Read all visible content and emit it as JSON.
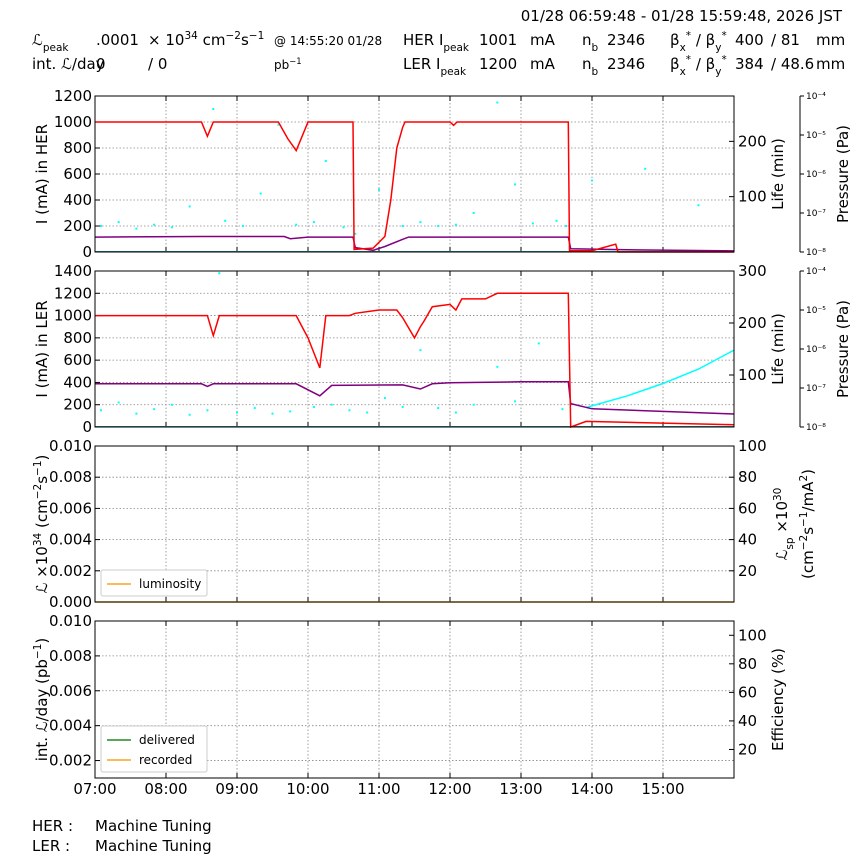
{
  "header": {
    "time_range": "01/28 06:59:48 - 01/28 15:59:48, 2026 JST",
    "rows": [
      [
        [
          "ℒ",
          {
            "text": "peak",
            "shift": "sub"
          }
        ],
        [
          ".0001"
        ],
        [
          "× 10",
          {
            "text": "34",
            "shift": "sup"
          },
          " cm",
          {
            "text": "−2",
            "shift": "sup"
          },
          "s",
          {
            "text": "−1",
            "shift": "sup"
          }
        ],
        [
          "@ 14:55:20 01/28"
        ],
        [
          "HER I",
          {
            "text": "peak",
            "shift": "sub"
          }
        ],
        [
          "1001"
        ],
        [
          "mA"
        ],
        [
          "n",
          {
            "text": "b",
            "shift": "sub"
          }
        ],
        [
          "2346"
        ],
        [
          "β",
          {
            "text": "x",
            "shift": "sub"
          },
          {
            "text": "*",
            "shift": "sup"
          },
          " / β",
          {
            "text": "y",
            "shift": "sub"
          },
          {
            "text": "*",
            "shift": "sup"
          }
        ],
        [
          "400"
        ],
        [
          "/ 81"
        ],
        [
          "mm"
        ]
      ],
      [
        [
          "int. ℒ/day"
        ],
        [
          "0"
        ],
        [
          "/ 0"
        ],
        [
          "pb",
          {
            "text": "−1",
            "shift": "sup"
          }
        ],
        [
          "LER I",
          {
            "text": "peak",
            "shift": "sub"
          }
        ],
        [
          "1200"
        ],
        [
          "mA"
        ],
        [
          "n",
          {
            "text": "b",
            "shift": "sub"
          }
        ],
        [
          "2346"
        ],
        [
          "β",
          {
            "text": "x",
            "shift": "sub"
          },
          {
            "text": "*",
            "shift": "sup"
          },
          " / β",
          {
            "text": "y",
            "shift": "sub"
          },
          {
            "text": "*",
            "shift": "sup"
          }
        ],
        [
          "384"
        ],
        [
          "/ 48.6"
        ],
        [
          "mm"
        ]
      ]
    ]
  },
  "chart_data": {
    "type": "line",
    "xlim": [
      "07:00",
      "16:00"
    ],
    "xticks": [
      "07:00",
      "08:00",
      "09:00",
      "10:00",
      "11:00",
      "12:00",
      "13:00",
      "14:00",
      "15:00"
    ],
    "grid": true,
    "panels": [
      {
        "ylabel": [
          [
            "I (mA) in HER"
          ]
        ],
        "y2label": [
          [
            "Life (min)"
          ]
        ],
        "y3label": [
          [
            "Pressure (Pa)"
          ]
        ],
        "ylim": [
          0,
          1200
        ],
        "yticks": [
          0,
          200,
          400,
          600,
          800,
          1000,
          1200
        ],
        "y2lim": [
          0,
          282
        ],
        "y2ticks": [
          100,
          200
        ],
        "y3lim": [
          1e-08,
          0.0001
        ],
        "y3log": true,
        "y3ticks": [
          {
            "value": 1e-08,
            "label": "10⁻⁸"
          },
          {
            "value": 1e-07,
            "label": "10⁻⁷"
          },
          {
            "value": 1e-06,
            "label": "10⁻⁶"
          },
          {
            "value": 1e-05,
            "label": "10⁻⁵"
          },
          {
            "value": 0.0001,
            "label": "10⁻⁴"
          }
        ],
        "series": [
          {
            "color": "#00ffff",
            "axis": "y",
            "mode": "markers",
            "x": [
              "07:05",
              "07:20",
              "07:35",
              "07:50",
              "08:05",
              "08:20",
              "08:40",
              "08:50",
              "09:05",
              "09:20",
              "09:35",
              "09:50",
              "10:05",
              "10:15",
              "10:30",
              "10:40",
              "11:00",
              "11:20",
              "11:35",
              "11:50",
              "12:05",
              "12:20",
              "12:40",
              "12:55",
              "13:10",
              "13:30",
              "13:38",
              "14:00",
              "14:45",
              "15:30"
            ],
            "values": [
              200,
              230,
              180,
              210,
              190,
              350,
              1100,
              240,
              200,
              450,
              980,
              210,
              230,
              700,
              190,
              140,
              480,
              200,
              230,
              200,
              210,
              300,
              1150,
              520,
              220,
              240,
              200,
              550,
              640,
              360
            ]
          },
          {
            "color": "#2e8b8b",
            "axis": "y",
            "mode": "lines",
            "x": [
              "07:00",
              "16:00"
            ],
            "values": [
              2,
              2
            ]
          },
          {
            "color": "#800080",
            "axis": "y2",
            "mode": "lines",
            "x": [
              "07:00",
              "08:30",
              "09:40",
              "09:45",
              "10:00",
              "10:38",
              "10:40",
              "10:55",
              "11:05",
              "11:20",
              "11:25",
              "13:40",
              "13:42",
              "14:30",
              "16:00"
            ],
            "values": [
              27,
              28,
              28,
              24,
              27,
              27,
              8,
              3,
              10,
              23,
              27,
              27,
              6,
              4,
              2
            ]
          },
          {
            "color": "#ff0000",
            "axis": "y",
            "mode": "lines",
            "x": [
              "07:00",
              "08:30",
              "08:35",
              "08:40",
              "09:35",
              "09:43",
              "09:50",
              "10:00",
              "10:38",
              "10:39",
              "10:55",
              "11:05",
              "11:10",
              "11:15",
              "11:20",
              "11:22",
              "12:00",
              "12:03",
              "12:06",
              "13:40",
              "13:41",
              "14:00",
              "14:20",
              "14:22",
              "16:00"
            ],
            "values": [
              1000,
              1000,
              890,
              1000,
              1000,
              870,
              780,
              1000,
              1000,
              20,
              30,
              120,
              400,
              800,
              960,
              1000,
              1000,
              975,
              1000,
              1000,
              10,
              10,
              60,
              0,
              0
            ]
          }
        ]
      },
      {
        "ylabel": [
          [
            "I (mA) in LER"
          ]
        ],
        "y2label": [
          [
            "Life (min)"
          ]
        ],
        "y3label": [
          [
            "Pressure (Pa)"
          ]
        ],
        "ylim": [
          0,
          1400
        ],
        "yticks": [
          0,
          200,
          400,
          600,
          800,
          1000,
          1200,
          1400
        ],
        "y2lim": [
          0,
          300
        ],
        "y2ticks": [
          100,
          200,
          300
        ],
        "y3lim": [
          1e-08,
          0.0001
        ],
        "y3log": true,
        "y3ticks": [
          {
            "value": 1e-08,
            "label": "10⁻⁸"
          },
          {
            "value": 1e-07,
            "label": "10⁻⁷"
          },
          {
            "value": 1e-06,
            "label": "10⁻⁶"
          },
          {
            "value": 1e-05,
            "label": "10⁻⁵"
          },
          {
            "value": 0.0001,
            "label": "10⁻⁴"
          }
        ],
        "series": [
          {
            "color": "#00ffff",
            "axis": "y",
            "mode": "markers",
            "x": [
              "07:05",
              "07:20",
              "07:35",
              "07:50",
              "08:05",
              "08:20",
              "08:35",
              "08:45",
              "09:00",
              "09:15",
              "09:30",
              "09:45",
              "10:05",
              "10:20",
              "10:35",
              "10:50",
              "11:05",
              "11:20",
              "11:35",
              "11:50",
              "12:05",
              "12:20",
              "12:40",
              "12:55",
              "13:15",
              "13:35"
            ],
            "values": [
              150,
              220,
              120,
              160,
              200,
              110,
              150,
              1380,
              130,
              170,
              120,
              140,
              180,
              200,
              150,
              130,
              260,
              180,
              690,
              170,
              130,
              200,
              540,
              230,
              750,
              160
            ]
          },
          {
            "color": "#00ffff",
            "axis": "y",
            "mode": "lines",
            "x": [
              "13:55",
              "14:30",
              "15:00",
              "15:30",
              "16:00"
            ],
            "values": [
              175,
              280,
              390,
              520,
              690
            ]
          },
          {
            "color": "#2e8b8b",
            "axis": "y",
            "mode": "lines",
            "x": [
              "07:00",
              "16:00"
            ],
            "values": [
              2,
              2
            ]
          },
          {
            "color": "#800080",
            "axis": "y2",
            "mode": "lines",
            "x": [
              "07:00",
              "08:30",
              "08:35",
              "08:40",
              "09:50",
              "10:10",
              "10:20",
              "11:20",
              "11:35",
              "11:45",
              "12:00",
              "13:00",
              "13:40",
              "13:42",
              "14:00",
              "16:00"
            ],
            "values": [
              83,
              83,
              78,
              83,
              83,
              60,
              80,
              81,
              73,
              83,
              85,
              87,
              87,
              45,
              35,
              25
            ]
          },
          {
            "color": "#ff0000",
            "axis": "y",
            "mode": "lines",
            "x": [
              "07:00",
              "08:35",
              "08:40",
              "08:45",
              "09:50",
              "10:00",
              "10:10",
              "10:15",
              "10:35",
              "10:40",
              "11:00",
              "11:15",
              "11:20",
              "11:30",
              "11:35",
              "11:38",
              "11:45",
              "12:00",
              "12:05",
              "12:10",
              "12:30",
              "12:40",
              "13:40",
              "13:42",
              "13:55",
              "16:00"
            ],
            "values": [
              1000,
              1000,
              820,
              1000,
              1000,
              800,
              530,
              1000,
              1000,
              1020,
              1050,
              1050,
              980,
              800,
              900,
              950,
              1080,
              1100,
              1050,
              1150,
              1150,
              1200,
              1200,
              0,
              50,
              20
            ]
          }
        ]
      },
      {
        "ylabel": [
          [
            "ℒ ×10",
            {
              "text": "34",
              "shift": "sup"
            },
            " (cm",
            {
              "text": "−2",
              "shift": "sup"
            },
            "s",
            {
              "text": "−1",
              "shift": "sup"
            },
            ")"
          ]
        ],
        "y2label": [
          [
            "ℒ",
            {
              "text": "sp",
              "shift": "sub"
            },
            " ×10",
            {
              "text": "30",
              "shift": "sup"
            }
          ],
          [
            "(cm",
            {
              "text": "−2",
              "shift": "sup"
            },
            "s",
            {
              "text": "−1",
              "shift": "sup"
            },
            "/mA",
            {
              "text": "2",
              "shift": "sup"
            },
            ")"
          ]
        ],
        "ylim": [
          0,
          0.01
        ],
        "yticks": [
          {
            "value": 0,
            "label": "0.000"
          },
          {
            "value": 0.002,
            "label": "0.002"
          },
          {
            "value": 0.004,
            "label": "0.004"
          },
          {
            "value": 0.006,
            "label": "0.006"
          },
          {
            "value": 0.008,
            "label": "0.008"
          },
          {
            "value": 0.01,
            "label": "0.010"
          }
        ],
        "y2lim": [
          0,
          100
        ],
        "y2ticks": [
          20,
          40,
          60,
          80,
          100
        ],
        "legend": "lower left",
        "series": [
          {
            "name": "luminosity",
            "color": "#f5a623",
            "axis": "y",
            "mode": "lines",
            "x": [
              "07:00",
              "16:00"
            ],
            "values": [
              0,
              0
            ]
          }
        ]
      },
      {
        "ylabel": [
          [
            "int. ℒ/day (pb",
            {
              "text": "−1",
              "shift": "sup"
            },
            ")"
          ]
        ],
        "y2label": [
          [
            "Efficiency (%)"
          ]
        ],
        "ylim": [
          0.001,
          0.01
        ],
        "yticks": [
          {
            "value": 0.002,
            "label": "0.002"
          },
          {
            "value": 0.004,
            "label": "0.004"
          },
          {
            "value": 0.006,
            "label": "0.006"
          },
          {
            "value": 0.008,
            "label": "0.008"
          },
          {
            "value": 0.01,
            "label": "0.010"
          }
        ],
        "y2lim": [
          0,
          110
        ],
        "y2ticks": [
          20,
          40,
          60,
          80,
          100
        ],
        "legend": "lower left",
        "series": [
          {
            "name": "delivered",
            "color": "#228b22",
            "axis": "y",
            "mode": "lines",
            "x": [],
            "values": []
          },
          {
            "name": "recorded",
            "color": "#f5a623",
            "axis": "y",
            "mode": "lines",
            "x": [],
            "values": []
          }
        ]
      }
    ]
  },
  "footer": [
    [
      "HER :",
      "Machine Tuning"
    ],
    [
      "LER :",
      "Machine Tuning"
    ]
  ]
}
